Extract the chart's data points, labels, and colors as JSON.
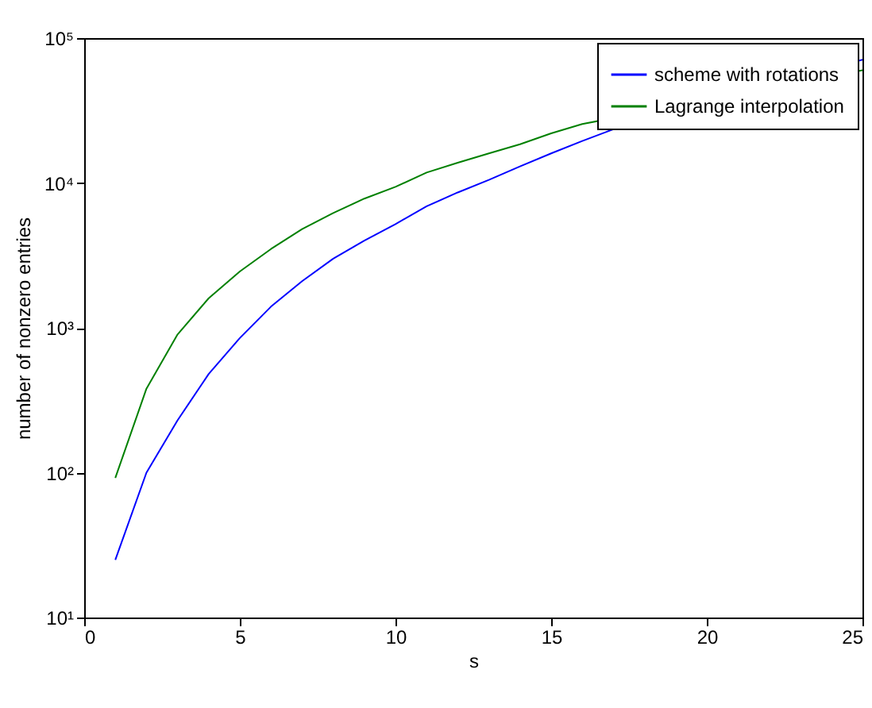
{
  "chart_data": {
    "type": "line",
    "xlabel": "s",
    "ylabel": "number of nonzero entries",
    "x": [
      1,
      2,
      3,
      4,
      5,
      6,
      7,
      8,
      9,
      10,
      11,
      12,
      13,
      14,
      15,
      16,
      17,
      18,
      19,
      20,
      21,
      22,
      23,
      24,
      25
    ],
    "series": [
      {
        "name": "scheme with rotations",
        "color": "#0000ff",
        "values": [
          25,
          100,
          230,
          480,
          850,
          1400,
          2100,
          3000,
          4000,
          5200,
          6900,
          8600,
          10500,
          13000,
          16000,
          19500,
          23500,
          null,
          null,
          null,
          null,
          null,
          null,
          null,
          71000
        ]
      },
      {
        "name": "Lagrange interpolation",
        "color": "#008000",
        "values": [
          92,
          380,
          900,
          1600,
          2450,
          3500,
          4800,
          6200,
          7800,
          9400,
          11800,
          13800,
          16000,
          18500,
          22000,
          25500,
          null,
          null,
          null,
          null,
          null,
          null,
          null,
          null,
          60000
        ]
      }
    ],
    "xlim": [
      0,
      25
    ],
    "xticks": [
      0,
      5,
      10,
      15,
      20,
      25
    ],
    "ylim": [
      10,
      100000
    ],
    "yticks": [
      {
        "value": 10,
        "label": "10¹"
      },
      {
        "value": 100,
        "label": "10²"
      },
      {
        "value": 1000,
        "label": "10³"
      },
      {
        "value": 10000,
        "label": "10⁴"
      },
      {
        "value": 100000,
        "label": "10⁵"
      }
    ],
    "log": "y",
    "legend": "top right"
  }
}
